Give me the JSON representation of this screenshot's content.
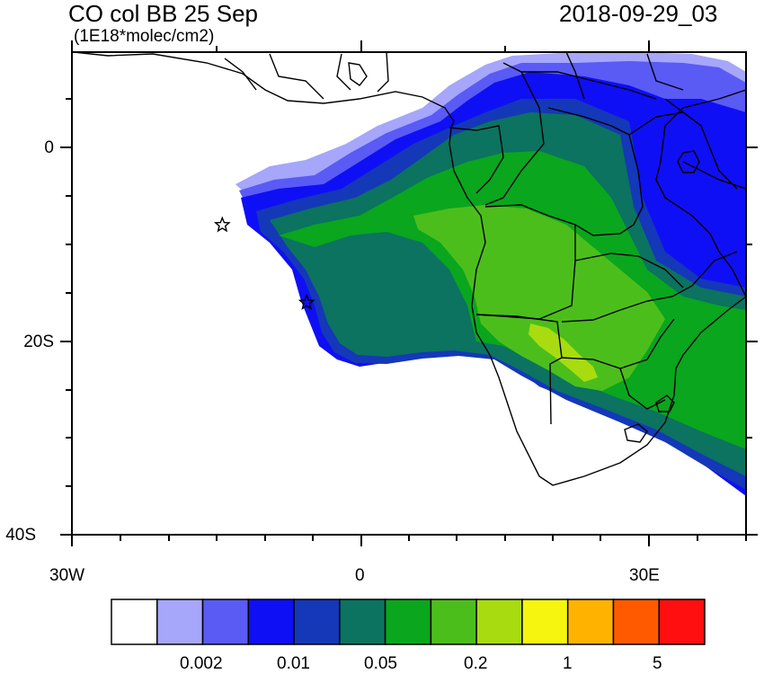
{
  "header": {
    "title": "CO col BB 25 Sep",
    "units": "(1E18*molec/cm2)",
    "datetime": "2018-09-29_03"
  },
  "axes": {
    "y_labels": [
      "0",
      "20S",
      "40S"
    ],
    "x_labels": [
      "30W",
      "0",
      "30E"
    ]
  },
  "colorbar": {
    "colors": [
      "#ffffff",
      "#a6a6fa",
      "#5a5af5",
      "#0f0ff5",
      "#1438b8",
      "#0b7360",
      "#0aa61e",
      "#4cbe1c",
      "#a8dc10",
      "#f5f50f",
      "#ffb300",
      "#ff5a00",
      "#ff0f0f"
    ],
    "labels": [
      "0.002",
      "0.01",
      "0.05",
      "0.2",
      "1",
      "5"
    ]
  },
  "markers": [
    {
      "name": "star-marker-1",
      "lon": -14.5,
      "lat": -8
    },
    {
      "name": "star-marker-2",
      "lon": -5.7,
      "lat": -16
    }
  ]
}
